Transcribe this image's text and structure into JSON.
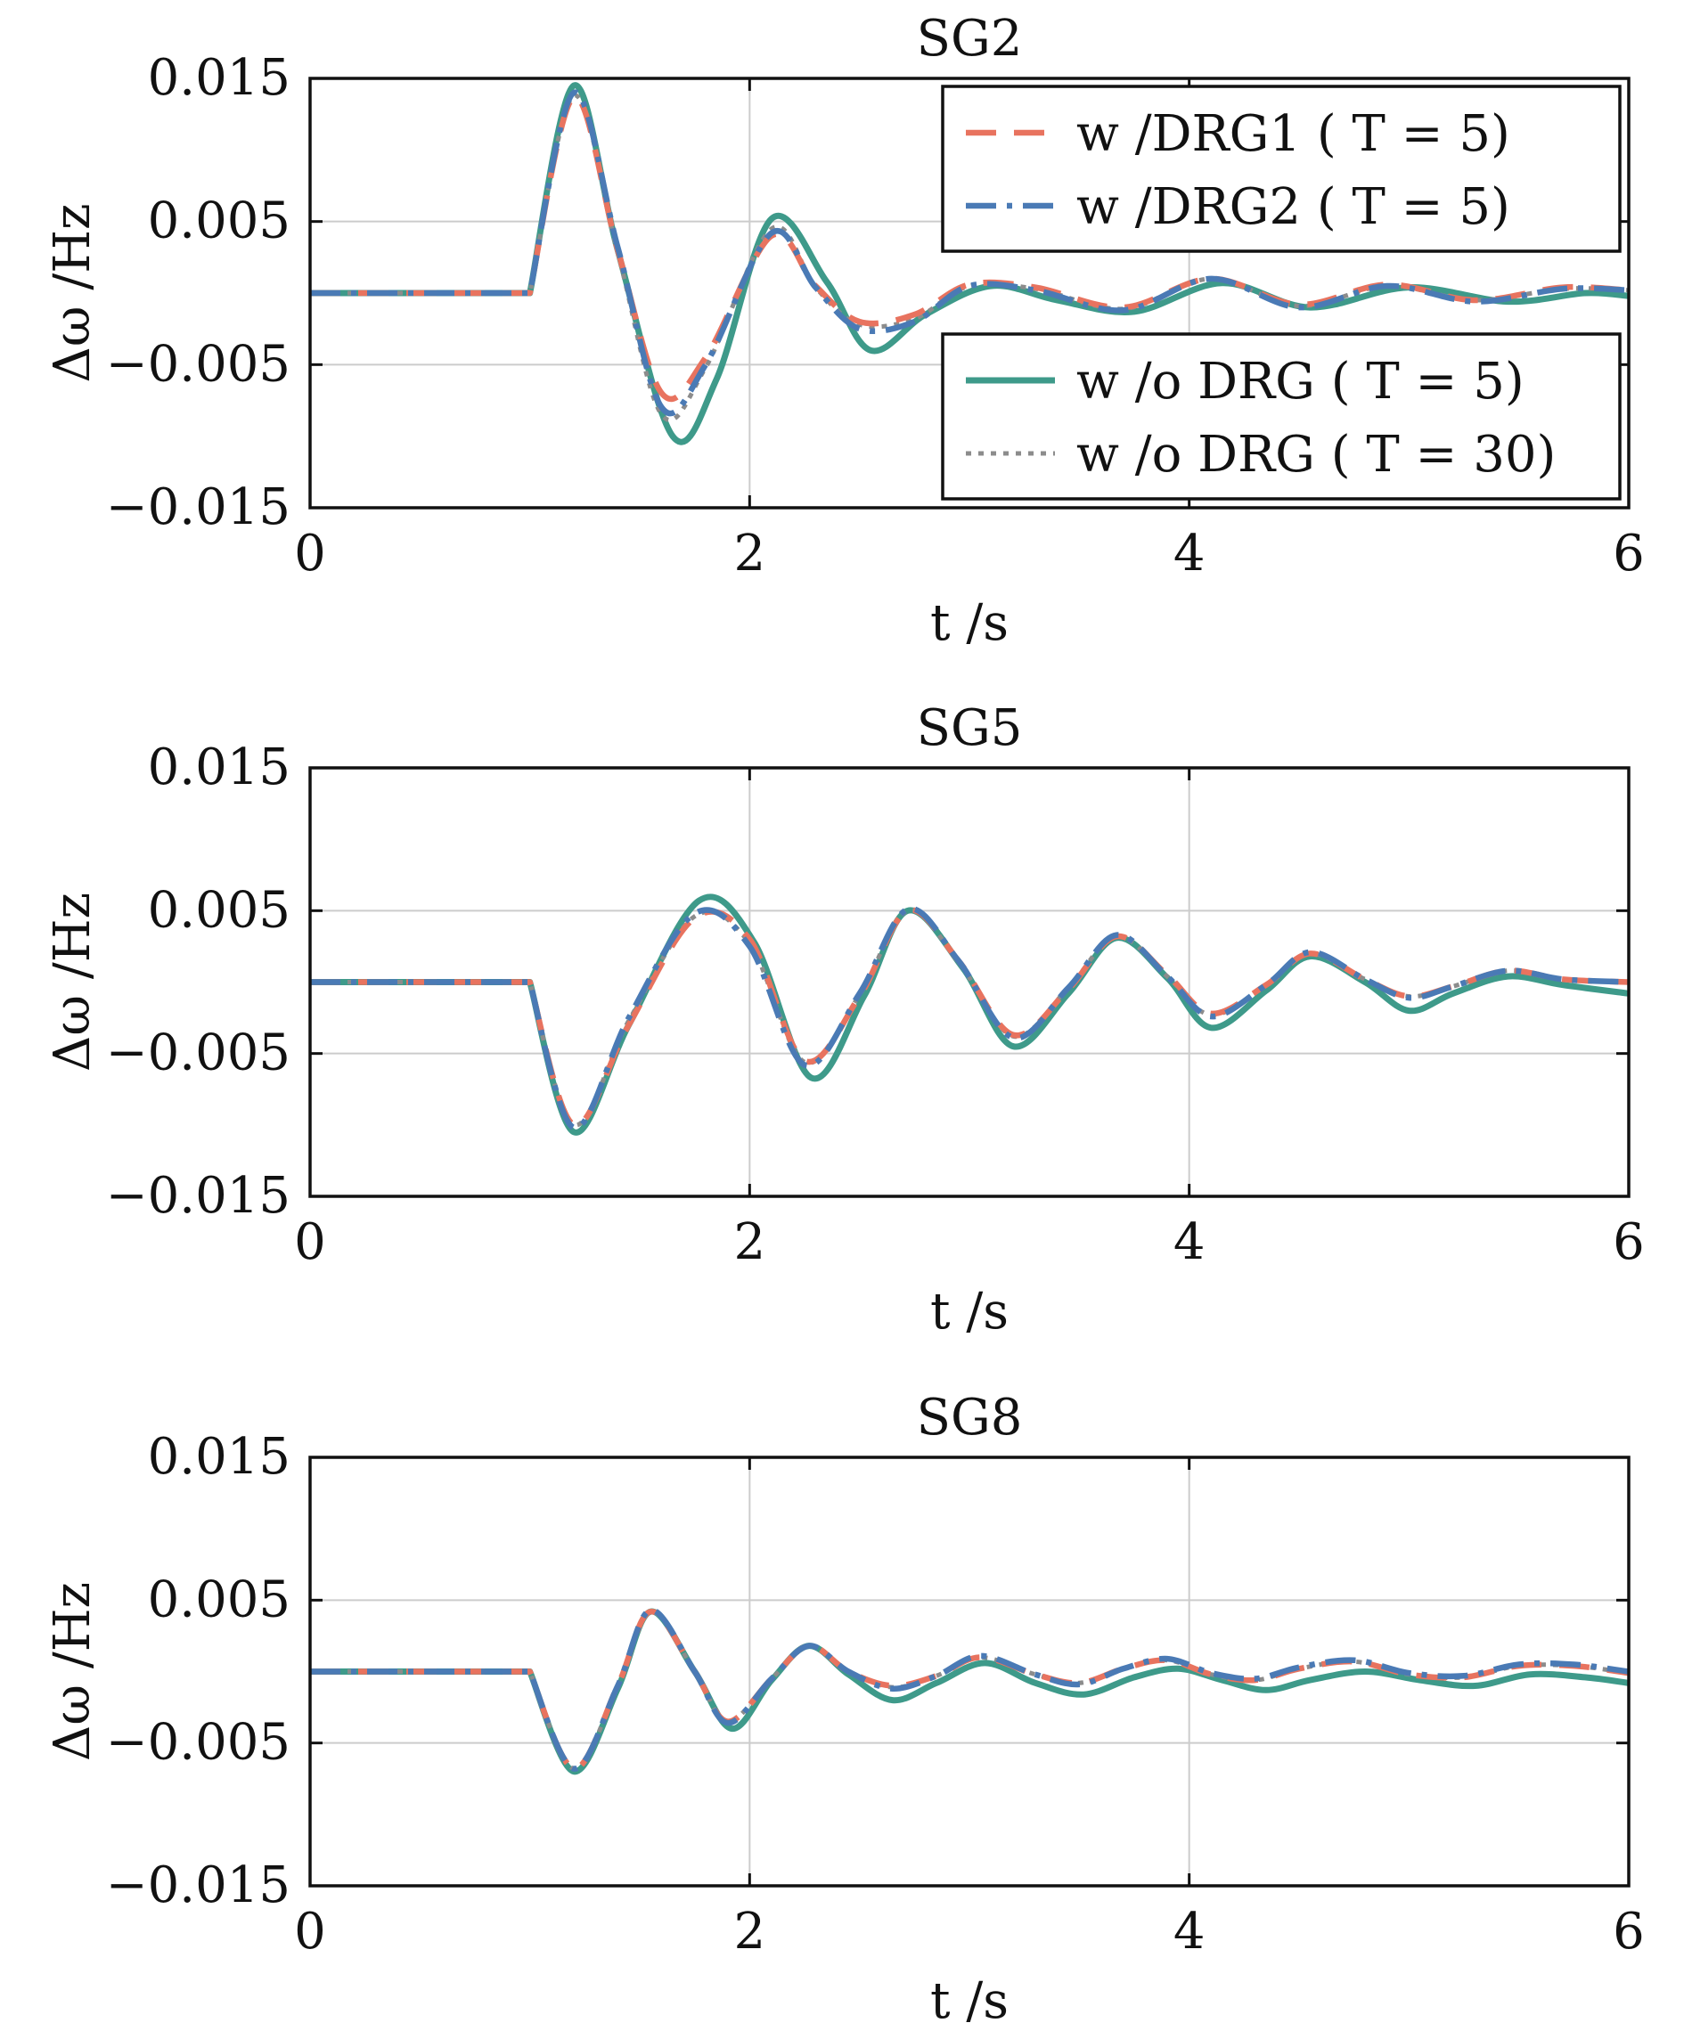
{
  "chart_data": [
    {
      "type": "line",
      "title": "SG2",
      "xlabel": "t /s",
      "ylabel": "Δω /Hz",
      "xlim": [
        0,
        6
      ],
      "ylim": [
        -0.015,
        0.015
      ],
      "xticks": [
        "0",
        "2",
        "4",
        "6"
      ],
      "yticks": [
        "0.015",
        "0.005",
        "−0.005",
        "−0.015"
      ],
      "grid": true,
      "legend": [
        {
          "placement": "top-right",
          "entries": [
            "w /DRG1 ( T = 5)",
            "w /DRG2 ( T = 5)"
          ]
        },
        {
          "placement": "bottom-right",
          "entries": [
            "w /o DRG ( T = 5)",
            "w /o DRG ( T = 30)"
          ]
        }
      ],
      "series": [
        {
          "name": "w /DRG1 ( T = 5)",
          "color": "#e8735f",
          "style": "dashed",
          "x": [
            0,
            1.0,
            1.2,
            1.4,
            1.6,
            1.8,
            2.1,
            2.3,
            2.5,
            2.75,
            3.0,
            3.3,
            3.7,
            4.1,
            4.5,
            4.9,
            5.3,
            5.7,
            6.0
          ],
          "y": [
            0,
            0,
            0.0137,
            0.003,
            -0.007,
            -0.0045,
            0.004,
            0.0005,
            -0.002,
            -0.0015,
            0.0006,
            0.0004,
            -0.001,
            0.001,
            -0.0008,
            0.0006,
            -0.0005,
            0.0004,
            0.0002
          ]
        },
        {
          "name": "w /DRG2 ( T = 5)",
          "color": "#4a7ab5",
          "style": "dashdot",
          "x": [
            0,
            1.0,
            1.2,
            1.4,
            1.6,
            1.8,
            2.1,
            2.3,
            2.5,
            2.75,
            3.0,
            3.3,
            3.7,
            4.1,
            4.5,
            4.9,
            5.3,
            5.7,
            6.0
          ],
          "y": [
            0,
            0,
            0.014,
            0.0032,
            -0.008,
            -0.005,
            0.0042,
            0.0004,
            -0.0025,
            -0.002,
            0.0005,
            0.0002,
            -0.0012,
            0.001,
            -0.001,
            0.0005,
            -0.0006,
            0.0003,
            0.0002
          ]
        },
        {
          "name": "w /o DRG ( T = 5)",
          "color": "#3e9a8a",
          "style": "solid",
          "x": [
            0,
            1.0,
            1.2,
            1.4,
            1.65,
            1.85,
            2.1,
            2.35,
            2.55,
            2.8,
            3.1,
            3.4,
            3.75,
            4.15,
            4.55,
            5.0,
            5.45,
            5.8,
            6.0
          ],
          "y": [
            0,
            0,
            0.0145,
            0.003,
            -0.01,
            -0.006,
            0.0052,
            0.0008,
            -0.004,
            -0.0015,
            0.0005,
            -0.0005,
            -0.0013,
            0.0007,
            -0.001,
            0.0004,
            -0.0006,
            0.0,
            -0.0002
          ]
        },
        {
          "name": "w /o DRG ( T = 30)",
          "color": "#8c8c8c",
          "style": "dotted",
          "x": [
            0,
            1.0,
            1.2,
            1.4,
            1.6,
            1.8,
            2.1,
            2.3,
            2.5,
            2.75,
            3.0,
            3.3,
            3.7,
            4.1,
            4.5,
            4.9,
            5.3,
            5.7,
            6.0
          ],
          "y": [
            0,
            0,
            0.0138,
            0.0028,
            -0.0085,
            -0.0052,
            0.0045,
            0.0004,
            -0.0022,
            -0.0018,
            0.0005,
            0.0003,
            -0.0011,
            0.001,
            -0.0009,
            0.0005,
            -0.0005,
            0.0003,
            0.0002
          ]
        }
      ]
    },
    {
      "type": "line",
      "title": "SG5",
      "xlabel": "t /s",
      "ylabel": "Δω /Hz",
      "xlim": [
        0,
        6
      ],
      "ylim": [
        -0.015,
        0.015
      ],
      "xticks": [
        "0",
        "2",
        "4",
        "6"
      ],
      "yticks": [
        "0.015",
        "0.005",
        "−0.005",
        "−0.015"
      ],
      "grid": true,
      "series": [
        {
          "name": "w /DRG1 ( T = 5)",
          "color": "#e8735f",
          "style": "dashed",
          "x": [
            0,
            1.0,
            1.2,
            1.45,
            1.75,
            2.0,
            2.25,
            2.5,
            2.72,
            2.95,
            3.2,
            3.45,
            3.67,
            3.9,
            4.1,
            4.35,
            4.55,
            4.8,
            5.0,
            5.2,
            5.45,
            5.7,
            6.0
          ],
          "y": [
            0,
            0,
            -0.01,
            -0.003,
            0.0045,
            0.003,
            -0.0055,
            -0.001,
            0.005,
            0.0015,
            -0.0037,
            -0.0005,
            0.0032,
            0.0005,
            -0.0022,
            -0.0002,
            0.002,
            0.0002,
            -0.001,
            -0.0003,
            0.0008,
            0.0002,
            0.0
          ]
        },
        {
          "name": "w /DRG2 ( T = 5)",
          "color": "#4a7ab5",
          "style": "dashdot",
          "x": [
            0,
            1.0,
            1.2,
            1.45,
            1.75,
            2.0,
            2.25,
            2.5,
            2.72,
            2.95,
            3.2,
            3.45,
            3.67,
            3.9,
            4.1,
            4.35,
            4.55,
            4.8,
            5.0,
            5.2,
            5.45,
            5.7,
            6.0
          ],
          "y": [
            0,
            0,
            -0.0102,
            -0.0025,
            0.0048,
            0.0025,
            -0.0058,
            -0.0008,
            0.0051,
            0.0015,
            -0.0039,
            -0.0004,
            0.0033,
            0.0004,
            -0.0024,
            -0.0002,
            0.0021,
            0.0002,
            -0.0011,
            -0.0003,
            0.0008,
            0.0002,
            0.0
          ]
        },
        {
          "name": "w /o DRG ( T = 5)",
          "color": "#3e9a8a",
          "style": "solid",
          "x": [
            0,
            1.0,
            1.2,
            1.45,
            1.77,
            2.02,
            2.28,
            2.52,
            2.72,
            2.97,
            3.2,
            3.45,
            3.67,
            3.9,
            4.1,
            4.35,
            4.55,
            4.8,
            5.0,
            5.2,
            5.45,
            5.7,
            6.0
          ],
          "y": [
            0,
            0,
            -0.0105,
            -0.003,
            0.0057,
            0.0028,
            -0.0067,
            -0.001,
            0.005,
            0.001,
            -0.0045,
            -0.0008,
            0.0031,
            0.0003,
            -0.0032,
            -0.0006,
            0.0018,
            0.0,
            -0.002,
            -0.0008,
            0.0004,
            -0.0002,
            -0.0008
          ]
        },
        {
          "name": "w /o DRG ( T = 30)",
          "color": "#8c8c8c",
          "style": "dotted",
          "x": [
            0,
            1.0,
            1.2,
            1.45,
            1.75,
            2.0,
            2.25,
            2.5,
            2.72,
            2.95,
            3.2,
            3.45,
            3.67,
            3.9,
            4.1,
            4.35,
            4.55,
            4.8,
            5.0,
            5.2,
            5.45,
            5.7,
            6.0
          ],
          "y": [
            0,
            0,
            -0.01,
            -0.0027,
            0.0046,
            0.0027,
            -0.0056,
            -0.0009,
            0.005,
            0.0014,
            -0.0038,
            -0.0004,
            0.0032,
            0.0004,
            -0.0023,
            -0.0002,
            0.002,
            0.0002,
            -0.001,
            -0.0003,
            0.0008,
            0.0002,
            0.0
          ]
        }
      ]
    },
    {
      "type": "line",
      "title": "SG8",
      "xlabel": "t /s",
      "ylabel": "Δω /Hz",
      "xlim": [
        0,
        6
      ],
      "ylim": [
        -0.015,
        0.015
      ],
      "xticks": [
        "0",
        "2",
        "4",
        "6"
      ],
      "yticks": [
        "0.015",
        "0.005",
        "−0.005",
        "−0.015"
      ],
      "grid": true,
      "series": [
        {
          "name": "w /DRG1 ( T = 5)",
          "color": "#e8735f",
          "style": "dashed",
          "x": [
            0,
            1.0,
            1.2,
            1.4,
            1.55,
            1.75,
            1.9,
            2.1,
            2.27,
            2.45,
            2.65,
            2.85,
            3.05,
            3.3,
            3.5,
            3.7,
            3.9,
            4.1,
            4.3,
            4.5,
            4.75,
            5.0,
            5.25,
            5.5,
            5.75,
            6.0
          ],
          "y": [
            0,
            0,
            -0.0068,
            -0.001,
            0.0042,
            0.0,
            -0.0035,
            -0.0005,
            0.0018,
            0.0,
            -0.001,
            -0.0003,
            0.001,
            -0.0002,
            -0.0008,
            0.0002,
            0.0008,
            -0.0002,
            -0.0006,
            0.0002,
            0.0007,
            -0.0002,
            -0.0004,
            0.0004,
            0.0004,
            -0.0001
          ]
        },
        {
          "name": "w /DRG2 ( T = 5)",
          "color": "#4a7ab5",
          "style": "dashdot",
          "x": [
            0,
            1.0,
            1.2,
            1.4,
            1.55,
            1.75,
            1.9,
            2.1,
            2.27,
            2.45,
            2.65,
            2.85,
            3.05,
            3.3,
            3.5,
            3.7,
            3.9,
            4.1,
            4.3,
            4.5,
            4.75,
            5.0,
            5.25,
            5.5,
            5.75,
            6.0
          ],
          "y": [
            0,
            0,
            -0.0068,
            -0.001,
            0.0043,
            0.0,
            -0.0036,
            -0.0005,
            0.0018,
            0.0,
            -0.0012,
            -0.0003,
            0.0011,
            -0.0002,
            -0.0009,
            0.0002,
            0.0009,
            -0.0001,
            -0.0005,
            0.0003,
            0.0008,
            -0.0001,
            -0.0003,
            0.0005,
            0.0005,
            0.0
          ]
        },
        {
          "name": "w /o DRG ( T = 5)",
          "color": "#3e9a8a",
          "style": "solid",
          "x": [
            0,
            1.0,
            1.2,
            1.4,
            1.55,
            1.75,
            1.92,
            2.1,
            2.27,
            2.45,
            2.65,
            2.85,
            3.07,
            3.3,
            3.52,
            3.75,
            3.95,
            4.15,
            4.35,
            4.55,
            4.8,
            5.05,
            5.3,
            5.55,
            5.8,
            6.0
          ],
          "y": [
            0,
            0,
            -0.007,
            -0.0012,
            0.0042,
            0.0,
            -0.004,
            -0.0006,
            0.0018,
            -0.0002,
            -0.002,
            -0.0008,
            0.0006,
            -0.0008,
            -0.0016,
            -0.0004,
            0.0002,
            -0.0006,
            -0.0013,
            -0.0006,
            0.0,
            -0.0006,
            -0.001,
            -0.0002,
            -0.0004,
            -0.0008
          ]
        },
        {
          "name": "w /o DRG ( T = 30)",
          "color": "#8c8c8c",
          "style": "dotted",
          "x": [
            0,
            1.0,
            1.2,
            1.4,
            1.55,
            1.75,
            1.9,
            2.1,
            2.27,
            2.45,
            2.65,
            2.85,
            3.05,
            3.3,
            3.5,
            3.7,
            3.9,
            4.1,
            4.3,
            4.5,
            4.75,
            5.0,
            5.25,
            5.5,
            5.75,
            6.0
          ],
          "y": [
            0,
            0,
            -0.0068,
            -0.001,
            0.0042,
            0.0,
            -0.0035,
            -0.0005,
            0.0018,
            0.0,
            -0.0011,
            -0.0003,
            0.001,
            -0.0002,
            -0.0008,
            0.0002,
            0.0008,
            -0.0002,
            -0.0006,
            0.0002,
            0.0007,
            -0.0002,
            -0.0004,
            0.0004,
            0.0004,
            -0.0001
          ]
        }
      ]
    }
  ]
}
